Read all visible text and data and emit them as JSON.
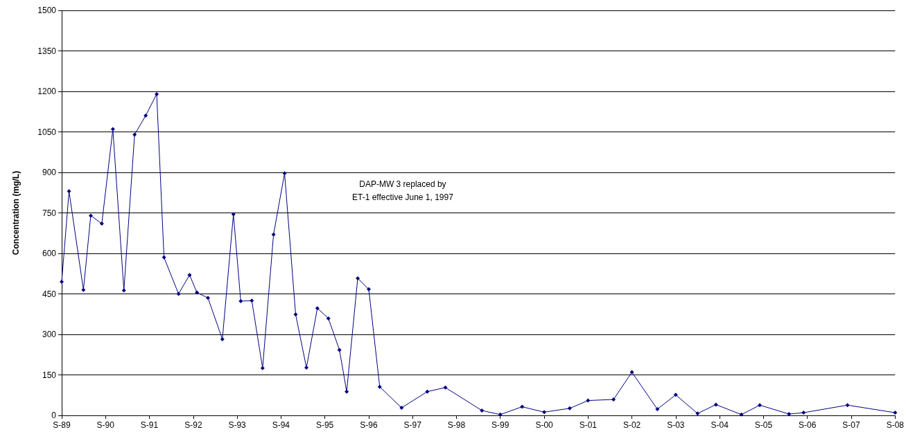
{
  "chart_data": {
    "type": "line",
    "ylabel": "Concentration (mg/L)",
    "annotations": [
      "DAP-MW 3 replaced by\nET-1 effective June 1, 1997"
    ],
    "x": [
      "1989-09",
      "1989-11",
      "1990-03",
      "1990-05",
      "1990-08",
      "1990-11",
      "1991-02",
      "1991-05",
      "1991-08",
      "1991-11",
      "1992-01",
      "1992-05",
      "1992-08",
      "1992-10",
      "1993-01",
      "1993-05",
      "1993-08",
      "1993-10",
      "1994-01",
      "1994-04",
      "1994-07",
      "1994-10",
      "1995-01",
      "1995-04",
      "1995-07",
      "1995-10",
      "1996-01",
      "1996-03",
      "1996-06",
      "1996-09",
      "1996-12",
      "1997-06",
      "1998-01",
      "1998-06",
      "1999-04",
      "1999-09",
      "2000-03",
      "2000-09",
      "2001-04",
      "2001-09",
      "2002-04",
      "2002-09",
      "2003-04",
      "2003-09",
      "2004-03",
      "2004-08",
      "2005-03",
      "2005-08",
      "2006-04",
      "2006-08",
      "2007-08",
      "2008-09"
    ],
    "series": [
      {
        "color": "#000080",
        "values": [
          495,
          830,
          465,
          740,
          710,
          1060,
          463,
          1040,
          1110,
          1190,
          585,
          450,
          520,
          455,
          435,
          282,
          745,
          423,
          425,
          175,
          670,
          897,
          374,
          177,
          397,
          359,
          242,
          88,
          508,
          467,
          106,
          28,
          88,
          103,
          18,
          3,
          32,
          12,
          26,
          55,
          59,
          160,
          23,
          76,
          7,
          40,
          3,
          38,
          5,
          10,
          38,
          10
        ]
      }
    ],
    "xlim": [
      "1989-09",
      "2008-09"
    ],
    "xticks": [
      {
        "value": "1989-09",
        "label": "S-89"
      },
      {
        "value": "1990-09",
        "label": "S-90"
      },
      {
        "value": "1991-09",
        "label": "S-91"
      },
      {
        "value": "1992-09",
        "label": "S-92"
      },
      {
        "value": "1993-09",
        "label": "S-93"
      },
      {
        "value": "1994-09",
        "label": "S-94"
      },
      {
        "value": "1995-09",
        "label": "S-95"
      },
      {
        "value": "1996-09",
        "label": "S-96"
      },
      {
        "value": "1997-09",
        "label": "S-97"
      },
      {
        "value": "1998-09",
        "label": "S-98"
      },
      {
        "value": "1999-09",
        "label": "S-99"
      },
      {
        "value": "2000-09",
        "label": "S-00"
      },
      {
        "value": "2001-09",
        "label": "S-01"
      },
      {
        "value": "2002-09",
        "label": "S-02"
      },
      {
        "value": "2003-09",
        "label": "S-03"
      },
      {
        "value": "2004-09",
        "label": "S-04"
      },
      {
        "value": "2005-09",
        "label": "S-05"
      },
      {
        "value": "2006-09",
        "label": "S-06"
      },
      {
        "value": "2007-09",
        "label": "S-07"
      },
      {
        "value": "2008-09",
        "label": "S-08"
      }
    ],
    "ylim": [
      0,
      1500
    ],
    "yticks": [
      0,
      150,
      300,
      450,
      600,
      750,
      900,
      1050,
      1200,
      1350,
      1500
    ],
    "grid": "y",
    "marker": "diamond",
    "line_style": "solid"
  }
}
